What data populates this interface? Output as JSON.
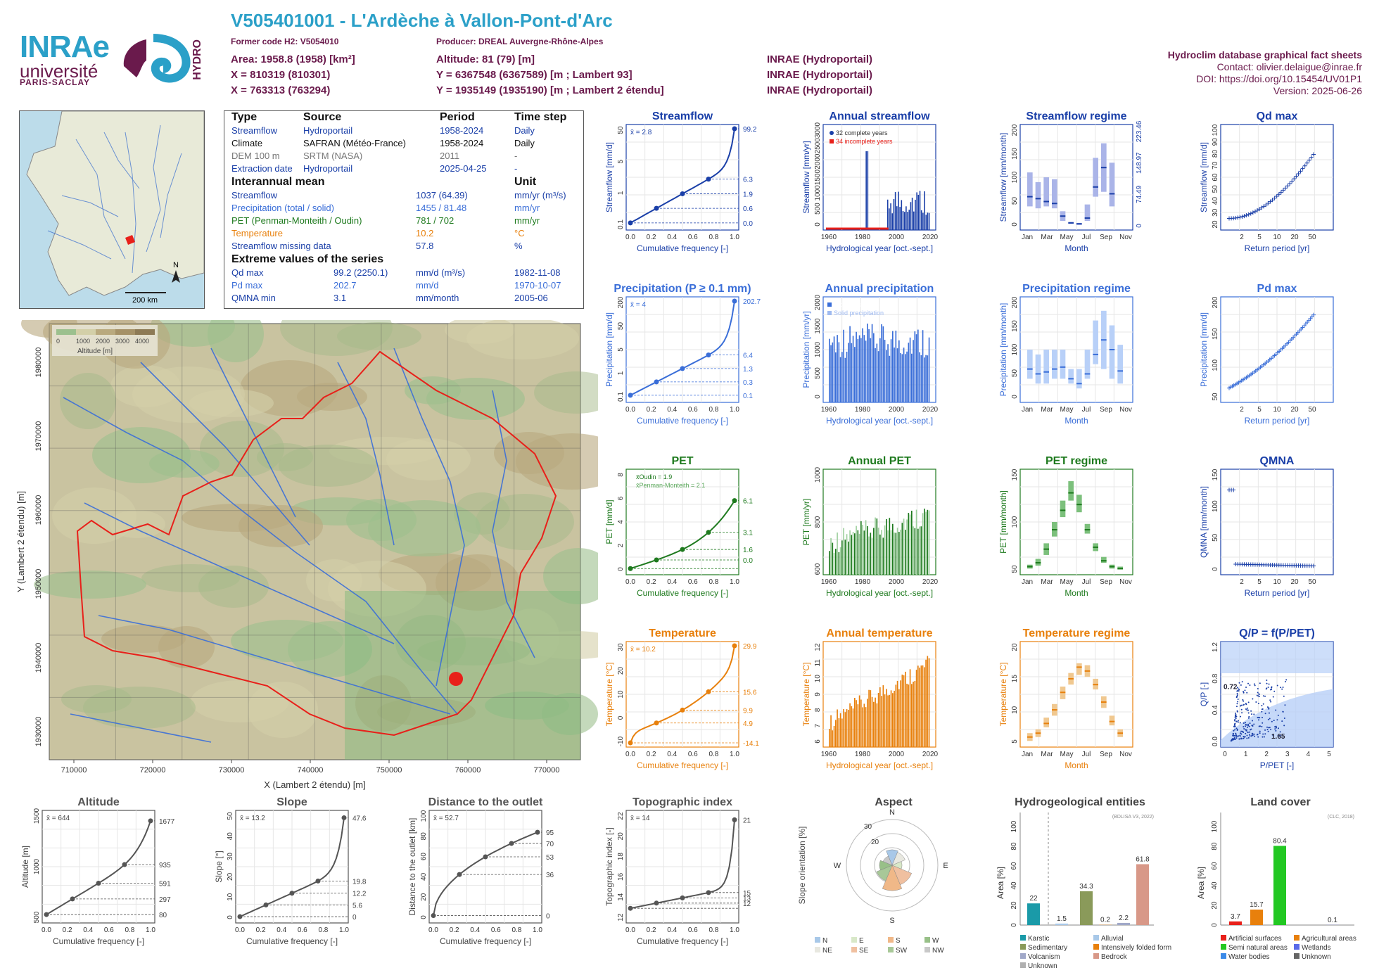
{
  "header": {
    "title": "V505401001 - L'Ardèche à Vallon-Pont-d'Arc",
    "former_code": "Former code H2: V5054010",
    "producer": "Producer: DREAL Auvergne-Rhône-Alpes",
    "area": "Area: 1958.8 (1958) [km²]",
    "x93": "X = 810319 (810301)",
    "x2e": "X = 763313 (763294)",
    "altitude": "Altitude: 81 (79) [m]",
    "y93": "Y = 6367548 (6367589) [m ; Lambert 93]",
    "y2e": "Y = 1935149 (1935190) [m ; Lambert 2 étendu]",
    "src1": "INRAE (Hydroportail)",
    "src2": "INRAE (Hydroportail)",
    "src3": "INRAE (Hydroportail)"
  },
  "logos": {
    "inrae": "INRAe",
    "univ": "université",
    "ps": "PARIS-SACLAY",
    "hydro": "HYDRO"
  },
  "info": {
    "db": "Hydroclim database graphical fact sheets",
    "contact": "Contact: olivier.delaigue@inrae.fr",
    "doi": "DOI: https://doi.org/10.15454/UV01P1",
    "version": "Version: 2025-06-26"
  },
  "table": {
    "h_type": "Type",
    "h_source": "Source",
    "h_period": "Period",
    "h_step": "Time step",
    "rows": [
      {
        "type": "Streamflow",
        "source": "Hydroportail",
        "period": "1958-2024",
        "step": "Daily",
        "color": "#1a3fa8"
      },
      {
        "type": "Climate",
        "source": "SAFRAN (Météo-France)",
        "period": "1958-2024",
        "step": "Daily",
        "color": "#111111"
      },
      {
        "type": "DEM 100 m",
        "source": "SRTM (NASA)",
        "period": "2011",
        "step": "-",
        "color": "#777777"
      },
      {
        "type": "Extraction date",
        "source": "Hydroportail",
        "period": "2025-04-25",
        "step": "-",
        "color": "#1a3fa8"
      }
    ],
    "h_mean": "Interannual mean",
    "h_unit": "Unit",
    "means": [
      {
        "label": "Streamflow",
        "value": "1037 (64.39)",
        "unit": "mm/yr (m³/s)",
        "color": "#1a3fa8"
      },
      {
        "label": "Precipitation (total / solid)",
        "value": "1455 / 81.48",
        "unit": "mm/yr",
        "color": "#3a6ed8"
      },
      {
        "label": "PET (Penman-Monteith / Oudin)",
        "value": "781 / 702",
        "unit": "mm/yr",
        "color": "#1e7a1e"
      },
      {
        "label": "Temperature",
        "value": "10.2",
        "unit": "°C",
        "color": "#e8800c"
      },
      {
        "label": "Streamflow missing data",
        "value": "57.8",
        "unit": "%",
        "color": "#1a3fa8"
      }
    ],
    "h_ext": "Extreme values of the series",
    "extremes": [
      {
        "label": "Qd max",
        "value": "99.2 (2250.1)",
        "unit": "mm/d (m³/s)",
        "date": "1982-11-08",
        "color": "#1a3fa8"
      },
      {
        "label": "Pd max",
        "value": "202.7",
        "unit": "mm/d",
        "date": "1970-10-07",
        "color": "#3a6ed8"
      },
      {
        "label": "QMNA min",
        "value": "3.1",
        "unit": "mm/month",
        "date": "2005-06",
        "color": "#1a3fa8"
      }
    ]
  },
  "france_map": {
    "north": "N",
    "scale": "200 km"
  },
  "basin_map": {
    "xlabel": "X (Lambert 2 étendu) [m]",
    "ylabel": "Y (Lambert 2 étendu) [m]",
    "xticks": [
      "710000",
      "720000",
      "730000",
      "740000",
      "750000",
      "760000",
      "770000"
    ],
    "yticks": [
      "1930000",
      "1940000",
      "1950000",
      "1960000",
      "1970000",
      "1980000"
    ],
    "legend_title": "Altitude [m]",
    "legend_ticks": [
      "0",
      "1000",
      "2000",
      "3000",
      "4000"
    ]
  },
  "chart_data": [
    {
      "id": "streamflow_cdf",
      "type": "line",
      "title": "Streamflow",
      "xlabel": "Cumulative frequency [-]",
      "ylabel": "Streamflow [mm/d]",
      "mean": "x̄ = 2.8",
      "xticks": [
        "0.0",
        "0.2",
        "0.4",
        "0.6",
        "0.8",
        "1.0"
      ],
      "yticks": [
        "0.1",
        "1",
        "5",
        "50"
      ],
      "right_labels": [
        "99.2",
        "6.3",
        "1.9",
        "0.6",
        "0.0"
      ]
    },
    {
      "id": "annual_streamflow",
      "type": "bar",
      "title": "Annual streamflow",
      "xlabel": "Hydrological year [oct.-sept.]",
      "ylabel": "Streamflow [mm/yr]",
      "xticks": [
        "1960",
        "1980",
        "2000",
        "2020"
      ],
      "yticks": [
        "0",
        "500",
        "1000",
        "1500",
        "2000",
        "2500",
        "3000"
      ],
      "legend": [
        "32 complete years",
        "34 incomplete years"
      ]
    },
    {
      "id": "streamflow_regime",
      "type": "bar",
      "title": "Streamflow regime",
      "xlabel": "Month",
      "ylabel": "Streamflow [mm/month]",
      "xticks": [
        "Jan",
        "Mar",
        "May",
        "Jul",
        "Sep",
        "Nov"
      ],
      "yticks": [
        "0",
        "50",
        "100",
        "150",
        "200"
      ],
      "right_labels": [
        "223.46",
        "148.97",
        "74.49",
        "0"
      ]
    },
    {
      "id": "qd_max",
      "type": "scatter",
      "title": "Qd max",
      "xlabel": "Return period [yr]",
      "ylabel": "Streamflow [mm/d]",
      "xticks": [
        "2",
        "5",
        "10",
        "20",
        "50"
      ],
      "yticks": [
        "20",
        "30",
        "40",
        "50",
        "60",
        "70",
        "80",
        "90",
        "100"
      ]
    },
    {
      "id": "precip_cdf",
      "type": "line",
      "title": "Precipitation (P ≥ 0.1 mm)",
      "xlabel": "Cumulative frequency [-]",
      "ylabel": "Precipitation [mm/d]",
      "mean": "x̄ = 4",
      "xticks": [
        "0.0",
        "0.2",
        "0.4",
        "0.6",
        "0.8",
        "1.0"
      ],
      "yticks": [
        "0.1",
        "1",
        "5",
        "50",
        "200"
      ],
      "right_labels": [
        "202.7",
        "6.4",
        "1.3",
        "0.3",
        "0.1"
      ]
    },
    {
      "id": "annual_precip",
      "type": "bar",
      "title": "Annual precipitation",
      "xlabel": "Hydrological year [oct.-sept.]",
      "ylabel": "Precipitation [mm/yr]",
      "xticks": [
        "1960",
        "1980",
        "2000",
        "2020"
      ],
      "yticks": [
        "0",
        "500",
        "1000",
        "1500",
        "2000"
      ],
      "legend": [
        "Total precipitation",
        "Solid precipitation"
      ]
    },
    {
      "id": "precip_regime",
      "type": "bar",
      "title": "Precipitation regime",
      "xlabel": "Month",
      "ylabel": "Precipitation [mm/month]",
      "xticks": [
        "Jan",
        "Mar",
        "May",
        "Jul",
        "Sep",
        "Nov"
      ],
      "yticks": [
        "0",
        "50",
        "100",
        "150",
        "200"
      ]
    },
    {
      "id": "pd_max",
      "type": "scatter",
      "title": "Pd max",
      "xlabel": "Return period [yr]",
      "ylabel": "Precipitation [mm/d]",
      "xticks": [
        "2",
        "5",
        "10",
        "20",
        "50"
      ],
      "yticks": [
        "50",
        "100",
        "150",
        "200"
      ]
    },
    {
      "id": "pet_cdf",
      "type": "line",
      "title": "PET",
      "xlabel": "Cumulative frequency [-]",
      "ylabel": "PET [mm/d]",
      "legend": [
        "x̄Oudin = 1.9",
        "x̄Penman-Monteith = 2.1"
      ],
      "xticks": [
        "0.0",
        "0.2",
        "0.4",
        "0.6",
        "0.8",
        "1.0"
      ],
      "yticks": [
        "0",
        "2",
        "4",
        "6",
        "8"
      ],
      "right_labels": [
        "6.1",
        "3.1",
        "1.6",
        "0.0"
      ]
    },
    {
      "id": "annual_pet",
      "type": "bar",
      "title": "Annual PET",
      "xlabel": "Hydrological year [oct.-sept.]",
      "ylabel": "PET [mm/yr]",
      "xticks": [
        "1960",
        "1980",
        "2000",
        "2020"
      ],
      "yticks": [
        "600",
        "800",
        "1000"
      ]
    },
    {
      "id": "pet_regime",
      "type": "bar",
      "title": "PET regime",
      "xlabel": "Month",
      "ylabel": "PET [mm/month]",
      "xticks": [
        "Jan",
        "Mar",
        "May",
        "Jul",
        "Sep",
        "Nov"
      ],
      "yticks": [
        "50",
        "100",
        "150"
      ]
    },
    {
      "id": "qmna",
      "type": "scatter",
      "title": "QMNA",
      "xlabel": "Return period [yr]",
      "ylabel": "QMNA [mm/month]",
      "xticks": [
        "2",
        "5",
        "10",
        "20",
        "50"
      ],
      "yticks": [
        "0",
        "50",
        "100",
        "150"
      ]
    },
    {
      "id": "temp_cdf",
      "type": "line",
      "title": "Temperature",
      "xlabel": "Cumulative frequency [-]",
      "ylabel": "Temperature [°C]",
      "mean": "x̄ = 10.2",
      "xticks": [
        "0.0",
        "0.2",
        "0.4",
        "0.6",
        "0.8",
        "1.0"
      ],
      "yticks": [
        "-10",
        "0",
        "10",
        "20",
        "30"
      ],
      "right_labels": [
        "29.9",
        "15.6",
        "9.9",
        "4.9",
        "-14.1"
      ]
    },
    {
      "id": "annual_temp",
      "type": "bar",
      "title": "Annual temperature",
      "xlabel": "Hydrological year [oct.-sept.]",
      "ylabel": "Temperature [°C]",
      "xticks": [
        "1960",
        "1980",
        "2000",
        "2020"
      ],
      "yticks": [
        "6",
        "7",
        "8",
        "9",
        "10",
        "11",
        "12"
      ]
    },
    {
      "id": "temp_regime",
      "type": "bar",
      "title": "Temperature regime",
      "xlabel": "Month",
      "ylabel": "Temperature [°C]",
      "xticks": [
        "Jan",
        "Mar",
        "May",
        "Jul",
        "Sep",
        "Nov"
      ],
      "yticks": [
        "5",
        "10",
        "15",
        "20"
      ]
    },
    {
      "id": "qp_ppet",
      "type": "scatter",
      "title": "Q/P = f(P/PET)",
      "xlabel": "P/PET [-]",
      "ylabel": "Q/P [-]",
      "xticks": [
        "0",
        "1",
        "2",
        "3",
        "4",
        "5"
      ],
      "yticks": [
        "0.0",
        "0.4",
        "0.8",
        "1.2"
      ],
      "labels": [
        "0.72",
        "1.65"
      ]
    },
    {
      "id": "altitude_cdf",
      "type": "line",
      "title": "Altitude",
      "xlabel": "Cumulative frequency [-]",
      "ylabel": "Altitude [m]",
      "mean": "x̄ = 644",
      "xticks": [
        "0.0",
        "0.2",
        "0.4",
        "0.6",
        "0.8",
        "1.0"
      ],
      "yticks": [
        "500",
        "1000",
        "1500"
      ],
      "right_labels": [
        "1677",
        "935",
        "591",
        "297",
        "80"
      ]
    },
    {
      "id": "slope_cdf",
      "type": "line",
      "title": "Slope",
      "xlabel": "Cumulative frequency [-]",
      "ylabel": "Slope [°]",
      "mean": "x̄ = 13.2",
      "xticks": [
        "0.0",
        "0.2",
        "0.4",
        "0.6",
        "0.8",
        "1.0"
      ],
      "yticks": [
        "0",
        "10",
        "20",
        "30",
        "40",
        "50"
      ],
      "right_labels": [
        "47.6",
        "19.8",
        "12.2",
        "5.6",
        "0"
      ]
    },
    {
      "id": "distance_cdf",
      "type": "line",
      "title": "Distance to the outlet",
      "xlabel": "Cumulative frequency [-]",
      "ylabel": "Distance to the outlet [km]",
      "mean": "x̄ = 52.7",
      "xticks": [
        "0.0",
        "0.2",
        "0.4",
        "0.6",
        "0.8",
        "1.0"
      ],
      "yticks": [
        "0",
        "20",
        "40",
        "60",
        "80",
        "100"
      ],
      "right_labels": [
        "95",
        "70",
        "53",
        "36",
        "0"
      ]
    },
    {
      "id": "topo_cdf",
      "type": "line",
      "title": "Topographic index",
      "xlabel": "Cumulative frequency [-]",
      "ylabel": "Topographic index [-]",
      "mean": "x̄ = 14",
      "xticks": [
        "0.0",
        "0.2",
        "0.4",
        "0.6",
        "0.8",
        "1.0"
      ],
      "yticks": [
        "12",
        "14",
        "16",
        "18",
        "20",
        "22"
      ],
      "right_labels": [
        "21",
        "15",
        "13",
        "12"
      ]
    },
    {
      "id": "aspect",
      "type": "pie",
      "title": "Aspect",
      "ylabel": "Slope orientation [%]",
      "dirs": [
        "N",
        "E",
        "S",
        "W"
      ],
      "rings": [
        "20",
        "30"
      ],
      "legend": [
        "N",
        "NE",
        "E",
        "SE",
        "S",
        "SW",
        "W",
        "NW"
      ]
    },
    {
      "id": "hydrogeo",
      "type": "bar",
      "title": "Hydrogeological entities",
      "ylabel": "Area [%]",
      "note": "(BDLISA V3, 2022)",
      "categories": [
        "Karstic",
        "Alluvial",
        "Sedimentary",
        "Intensively folded formation",
        "Volcanism",
        "Bedrock",
        "Unknown"
      ],
      "values": [
        22,
        1.5,
        34.3,
        0.2,
        2.2,
        61.8
      ],
      "labels": [
        "22",
        "1.5",
        "34.3",
        "0.2",
        "2.2",
        "61.8"
      ],
      "yticks": [
        "0",
        "20",
        "40",
        "60",
        "80",
        "100"
      ],
      "legend": [
        "Karstic",
        "Alluvial",
        "Sedimentary",
        "Intensively folded formation",
        "Volcanism",
        "Bedrock",
        "Unknown"
      ]
    },
    {
      "id": "landcover",
      "type": "bar",
      "title": "Land cover",
      "ylabel": "Area [%]",
      "note": "(CLC, 2018)",
      "values": [
        3.7,
        15.7,
        80.4,
        0.1
      ],
      "labels": [
        "3.7",
        "15.7",
        "80.4",
        "0.1"
      ],
      "yticks": [
        "0",
        "20",
        "40",
        "60",
        "80",
        "100"
      ],
      "legend": [
        "Artificial surfaces",
        "Agricultural areas",
        "Semi natural areas",
        "Wetlands",
        "Water bodies",
        "Unknown"
      ]
    }
  ],
  "colors": {
    "blue": "#1a3fa8",
    "lblue": "#3a6ed8",
    "green": "#1e7a1e",
    "orange": "#e8800c",
    "grey": "#555555",
    "red": "#e8201a"
  }
}
